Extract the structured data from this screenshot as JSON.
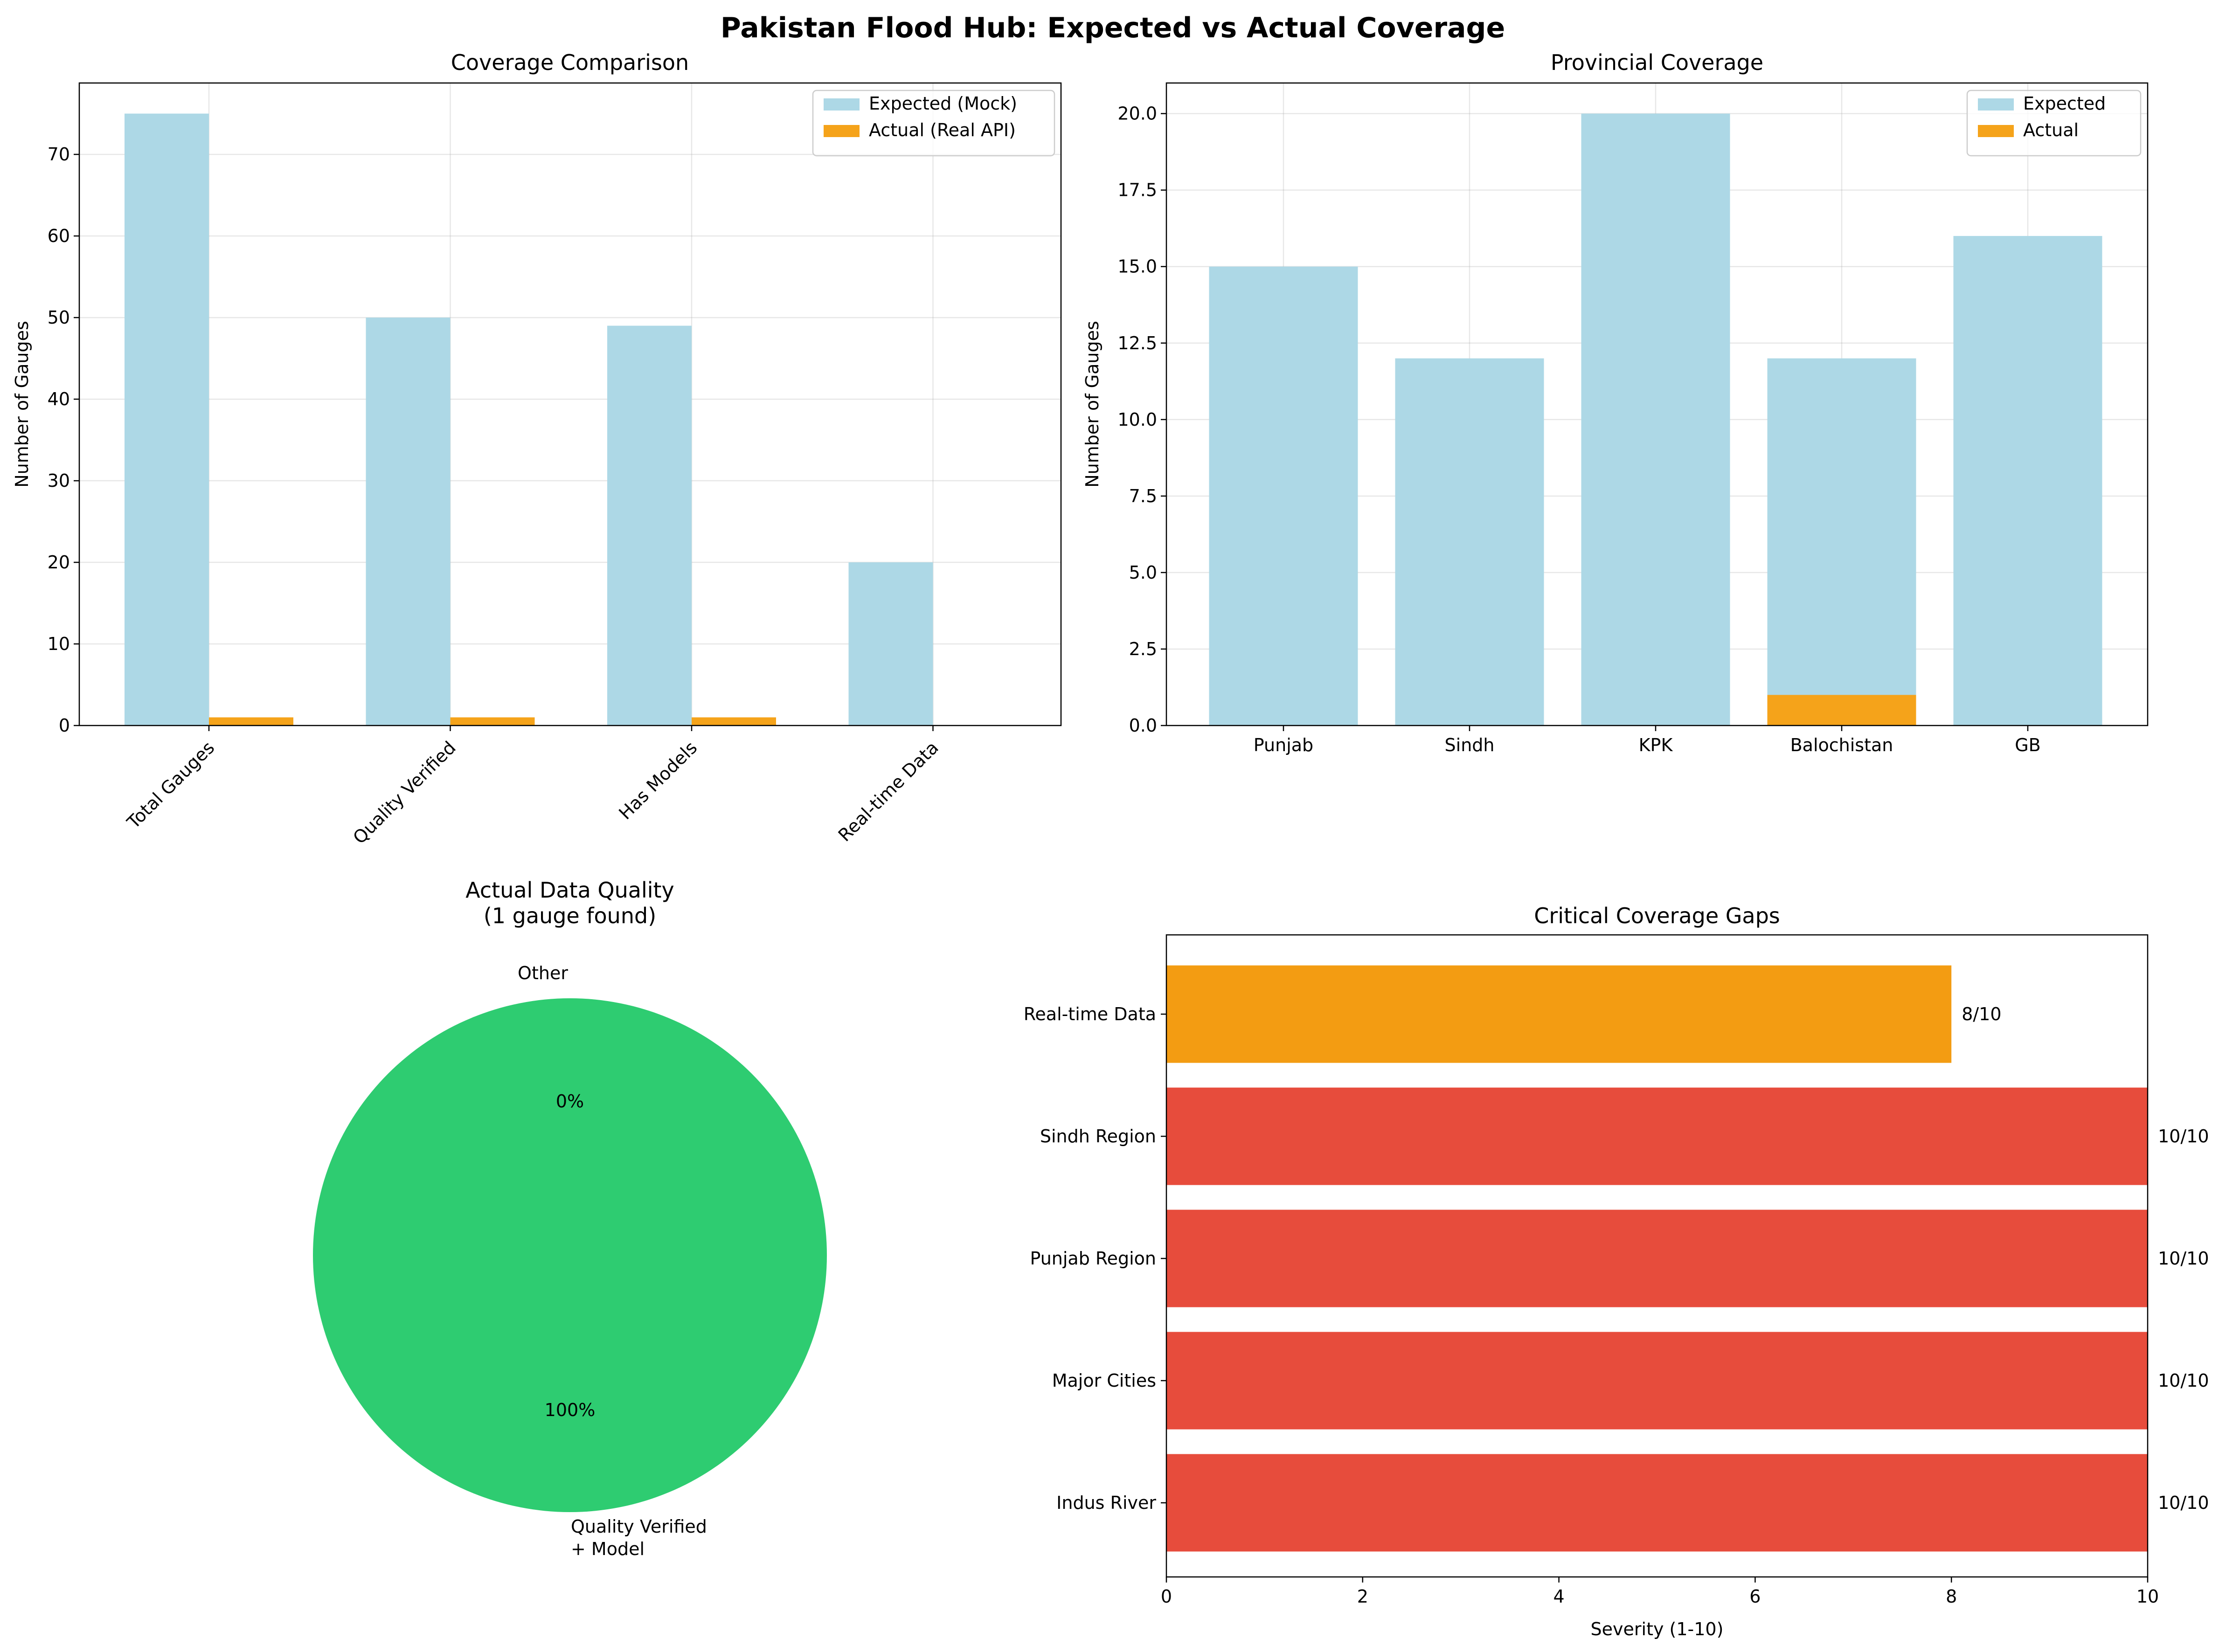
{
  "figure": {
    "title": "Pakistan Flood Hub: Expected vs Actual Coverage"
  },
  "colors": {
    "expected": "#add8e6",
    "actual": "#f5a31a",
    "pie_green": "#2ecc71",
    "gap_critical": "#e74c3c",
    "gap_high": "#f39c12"
  },
  "chart_data": [
    {
      "type": "bar",
      "title": "Coverage Comparison",
      "xlabel": "",
      "ylabel": "Number of Gauges",
      "categories": [
        "Total Gauges",
        "Quality Verified",
        "Has Models",
        "Real-time Data"
      ],
      "series": [
        {
          "name": "Expected (Mock)",
          "values": [
            75,
            50,
            49,
            20
          ]
        },
        {
          "name": "Actual (Real API)",
          "values": [
            1,
            1,
            1,
            0
          ]
        }
      ],
      "ylim": [
        0,
        78.75
      ],
      "yticks": [
        0,
        10,
        20,
        30,
        40,
        50,
        60,
        70
      ],
      "grid": true,
      "legend": "upper right"
    },
    {
      "type": "bar",
      "title": "Provincial Coverage",
      "xlabel": "",
      "ylabel": "Number of Gauges",
      "categories": [
        "Punjab",
        "Sindh",
        "KPK",
        "Balochistan",
        "GB"
      ],
      "series": [
        {
          "name": "Expected",
          "values": [
            15,
            12,
            20,
            12,
            16
          ]
        },
        {
          "name": "Actual",
          "values": [
            0,
            0,
            0,
            1,
            0
          ]
        }
      ],
      "ylim": [
        0,
        21
      ],
      "yticks": [
        "0.0",
        "2.5",
        "5.0",
        "7.5",
        "10.0",
        "12.5",
        "15.0",
        "17.5",
        "20.0"
      ],
      "grid": true,
      "legend": "upper right"
    },
    {
      "type": "pie",
      "title_lines": [
        "Actual Data Quality",
        "(1 gauge found)"
      ],
      "slices": [
        {
          "label": "Other",
          "value": 0,
          "pct": "0%"
        },
        {
          "label_lines": [
            "Quality Verified",
            "+ Model"
          ],
          "value": 100,
          "pct": "100%"
        }
      ]
    },
    {
      "type": "bar",
      "orientation": "horizontal",
      "title": "Critical Coverage Gaps",
      "xlabel": "Severity (1-10)",
      "ylabel": "",
      "categories": [
        "Real-time Data",
        "Sindh Region",
        "Punjab Region",
        "Major Cities",
        "Indus River"
      ],
      "values": [
        8,
        10,
        10,
        10,
        10
      ],
      "value_labels": [
        "8/10",
        "10/10",
        "10/10",
        "10/10",
        "10/10"
      ],
      "xlim": [
        0,
        10
      ],
      "xticks": [
        0,
        2,
        4,
        6,
        8,
        10
      ],
      "grid": false
    }
  ]
}
